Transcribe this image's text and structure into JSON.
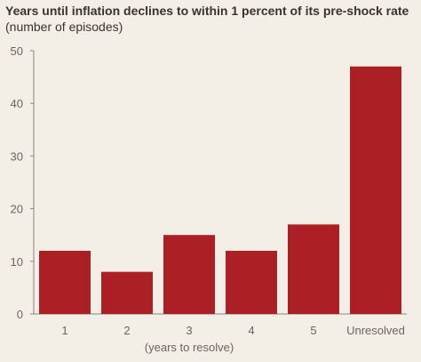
{
  "title": "Years until inflation declines to within 1 percent of its pre-shock rate",
  "subtitle": "(number of episodes)",
  "colors": {
    "bar": "#ab1f25",
    "background": "#f3efe6",
    "axis": "#8a8380",
    "text": "#6b6360"
  },
  "chart_data": {
    "type": "bar",
    "categories": [
      "1",
      "2",
      "3",
      "4",
      "5",
      "Unresolved"
    ],
    "values": [
      12,
      8,
      15,
      12,
      17,
      47
    ],
    "title": "Years until inflation declines to within 1 percent of its pre-shock rate",
    "subtitle": "(number of episodes)",
    "xlabel": "(years to resolve)",
    "ylabel": "",
    "ylim": [
      0,
      50
    ],
    "yticks": [
      0,
      10,
      20,
      30,
      40,
      50
    ],
    "grid": false,
    "legend": "none"
  }
}
